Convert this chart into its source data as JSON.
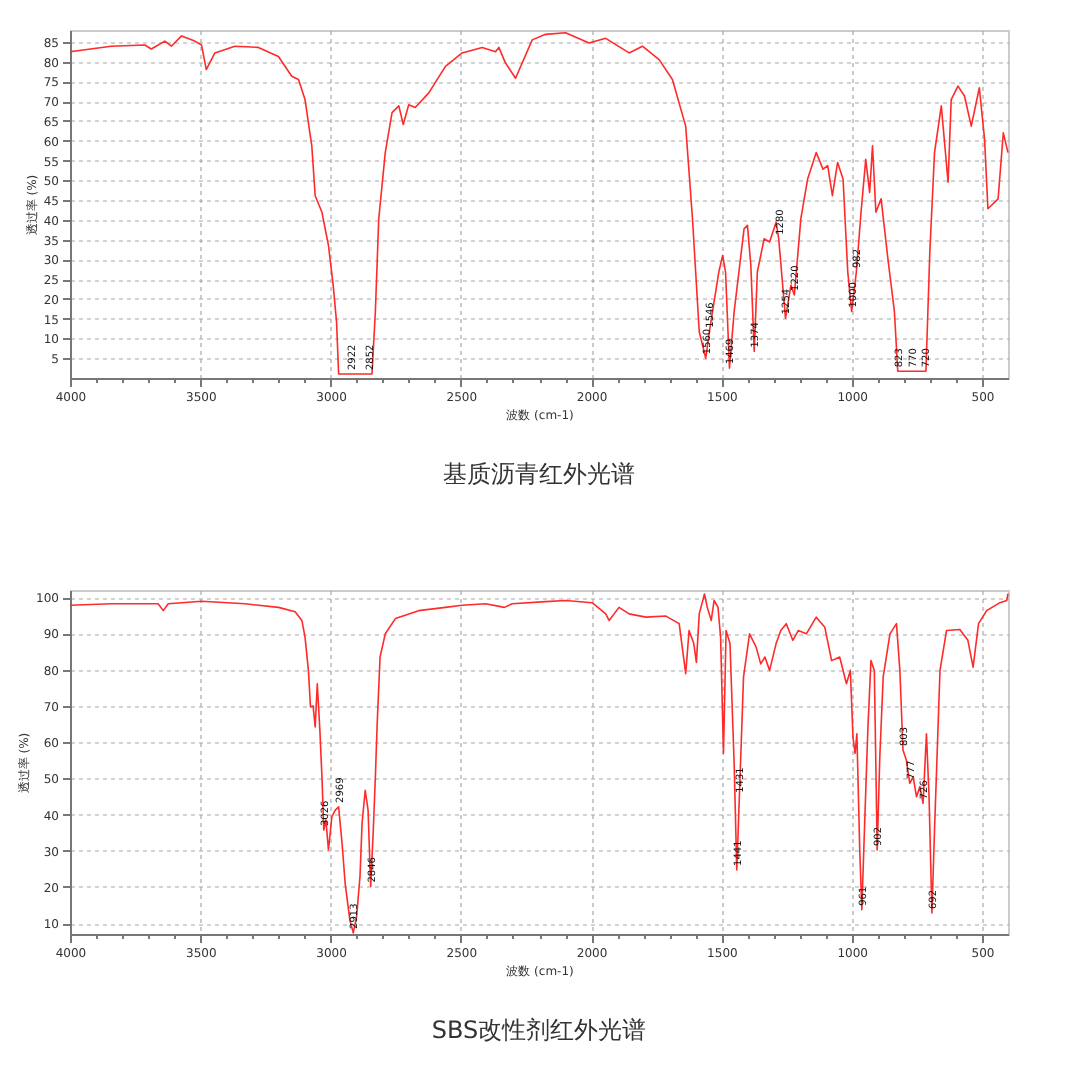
{
  "chart_data": [
    {
      "type": "line",
      "title": "基质沥青红外光谱",
      "xlabel": "波数 (cm-1)",
      "ylabel": "透过率 (%)",
      "grid": true,
      "xlim": [
        4000,
        400
      ],
      "ylim": [
        0,
        88
      ],
      "xticks": [
        4000,
        {
          "value": 3900,
          "label": null
        },
        {
          "value": 3800,
          "label": null
        },
        {
          "value": 3700,
          "label": null
        },
        {
          "value": 3600,
          "label": null
        },
        3500,
        {
          "value": 3400,
          "label": null
        },
        {
          "value": 3300,
          "label": null
        },
        {
          "value": 3200,
          "label": null
        },
        {
          "value": 3100,
          "label": null
        },
        3000,
        {
          "value": 2900,
          "label": null
        },
        {
          "value": 2800,
          "label": null
        },
        {
          "value": 2700,
          "label": null
        },
        {
          "value": 2600,
          "label": null
        },
        2500,
        {
          "value": 2400,
          "label": null
        },
        {
          "value": 2300,
          "label": null
        },
        {
          "value": 2200,
          "label": null
        },
        {
          "value": 2100,
          "label": null
        },
        2000,
        {
          "value": 1900,
          "label": null
        },
        {
          "value": 1800,
          "label": null
        },
        {
          "value": 1700,
          "label": null
        },
        {
          "value": 1600,
          "label": null
        },
        1500,
        {
          "value": 1400,
          "label": null
        },
        {
          "value": 1300,
          "label": null
        },
        {
          "value": 1200,
          "label": null
        },
        {
          "value": 1100,
          "label": null
        },
        1000,
        {
          "value": 900,
          "label": null
        },
        {
          "value": 800,
          "label": null
        },
        {
          "value": 700,
          "label": null
        },
        {
          "value": 600,
          "label": null
        },
        500
      ],
      "yticks": [
        5,
        10,
        15,
        20,
        25,
        30,
        35,
        40,
        45,
        50,
        55,
        60,
        65,
        70,
        75,
        80,
        85
      ],
      "x": [
        4000,
        3842,
        3713,
        3688,
        3636,
        3611,
        3572,
        3521,
        3495,
        3477,
        3444,
        3367,
        3277,
        3200,
        3149,
        3123,
        3098,
        3072,
        3059,
        3033,
        3008,
        2990,
        2977,
        2969,
        2900,
        2841,
        2828,
        2815,
        2790,
        2764,
        2738,
        2721,
        2700,
        2675,
        2623,
        2559,
        2495,
        2418,
        2367,
        2354,
        2329,
        2290,
        2226,
        2175,
        2098,
        2008,
        1944,
        1854,
        1803,
        1739,
        1688,
        1637,
        1611,
        1585,
        1560,
        1546,
        1510,
        1495,
        1484,
        1469,
        1451,
        1413,
        1400,
        1387,
        1374,
        1362,
        1336,
        1315,
        1290,
        1280,
        1254,
        1233,
        1220,
        1195,
        1169,
        1136,
        1110,
        1092,
        1074,
        1054,
        1033,
        1015,
        1000,
        982,
        964,
        946,
        931,
        920,
        907,
        887,
        861,
        836,
        823,
        715,
        700,
        682,
        656,
        630,
        618,
        592,
        567,
        541,
        510,
        490,
        477,
        438,
        418,
        400
      ],
      "series": [
        {
          "color": "#ff2a2a",
          "values": [
            82.5,
            83.9,
            84.2,
            83.2,
            85.2,
            83.9,
            86.5,
            85.2,
            84.2,
            78.0,
            82.2,
            83.9,
            83.6,
            81.3,
            76.3,
            75.5,
            70.4,
            58.7,
            46.1,
            41.9,
            33.5,
            23.5,
            14.2,
            1.0,
            1.0,
            1.0,
            16.8,
            40.3,
            57.0,
            67.1,
            68.8,
            64.1,
            69.1,
            68.4,
            72.1,
            78.8,
            82.2,
            83.6,
            82.5,
            83.6,
            79.7,
            75.8,
            85.5,
            86.9,
            87.3,
            84.7,
            85.9,
            82.2,
            83.9,
            80.5,
            75.5,
            63.7,
            40.3,
            11.7,
            5.0,
            11.7,
            26.8,
            31.0,
            26.8,
            2.5,
            16.8,
            37.7,
            38.6,
            28.5,
            6.7,
            26.8,
            35.2,
            34.4,
            39.4,
            35.2,
            15.1,
            23.5,
            21.0,
            40.3,
            50.3,
            57.0,
            52.8,
            53.7,
            46.1,
            54.5,
            50.3,
            26.8,
            16.8,
            26.8,
            41.9,
            55.3,
            46.9,
            58.7,
            41.9,
            45.3,
            30.2,
            16.8,
            1.7,
            1.7,
            31.9,
            57.0,
            68.8,
            49.5,
            70.4,
            73.8,
            71.3,
            63.7,
            73.4,
            60.4,
            42.8,
            45.3,
            62.0,
            57.0
          ]
        }
      ],
      "annotations": [
        {
          "text": "2922",
          "x": 2922,
          "y": 1
        },
        {
          "text": "2852",
          "x": 2852,
          "y": 1
        },
        {
          "text": "1560",
          "x": 1560,
          "y": 5
        },
        {
          "text": "1546",
          "x": 1546,
          "y": 11.7
        },
        {
          "text": "1469",
          "x": 1469,
          "y": 2.5
        },
        {
          "text": "1374",
          "x": 1374,
          "y": 6.7
        },
        {
          "text": "1280",
          "x": 1280,
          "y": 35.2
        },
        {
          "text": "1254",
          "x": 1254,
          "y": 15.1
        },
        {
          "text": "1220",
          "x": 1220,
          "y": 21.0
        },
        {
          "text": "1000",
          "x": 1000,
          "y": 16.8
        },
        {
          "text": "982",
          "x": 982,
          "y": 26.8
        },
        {
          "text": "823",
          "x": 823,
          "y": 1.7
        },
        {
          "text": "770",
          "x": 770,
          "y": 1.7
        },
        {
          "text": "720",
          "x": 720,
          "y": 1.7
        }
      ]
    },
    {
      "type": "line",
      "title": "SBS改性剂红外光谱",
      "xlabel": "波数 (cm-1)",
      "ylabel": "透过率 (%)",
      "grid": true,
      "xlim": [
        4000,
        400
      ],
      "ylim": [
        7,
        102
      ],
      "xticks": [
        4000,
        {
          "value": 3900,
          "label": null
        },
        {
          "value": 3800,
          "label": null
        },
        {
          "value": 3700,
          "label": null
        },
        {
          "value": 3600,
          "label": null
        },
        3500,
        {
          "value": 3400,
          "label": null
        },
        {
          "value": 3300,
          "label": null
        },
        {
          "value": 3200,
          "label": null
        },
        {
          "value": 3100,
          "label": null
        },
        3000,
        {
          "value": 2900,
          "label": null
        },
        {
          "value": 2800,
          "label": null
        },
        {
          "value": 2700,
          "label": null
        },
        {
          "value": 2600,
          "label": null
        },
        2500,
        {
          "value": 2400,
          "label": null
        },
        {
          "value": 2300,
          "label": null
        },
        {
          "value": 2200,
          "label": null
        },
        {
          "value": 2100,
          "label": null
        },
        2000,
        {
          "value": 1900,
          "label": null
        },
        {
          "value": 1800,
          "label": null
        },
        {
          "value": 1700,
          "label": null
        },
        {
          "value": 1600,
          "label": null
        },
        1500,
        {
          "value": 1400,
          "label": null
        },
        {
          "value": 1300,
          "label": null
        },
        {
          "value": 1200,
          "label": null
        },
        {
          "value": 1100,
          "label": null
        },
        1000,
        {
          "value": 900,
          "label": null
        },
        {
          "value": 800,
          "label": null
        },
        {
          "value": 700,
          "label": null
        },
        {
          "value": 600,
          "label": null
        },
        500
      ],
      "yticks": [
        10,
        20,
        30,
        40,
        50,
        60,
        70,
        80,
        90,
        100
      ],
      "x": [
        4000,
        3842,
        3662,
        3642,
        3623,
        3495,
        3328,
        3200,
        3136,
        3110,
        3098,
        3085,
        3077,
        3067,
        3059,
        3051,
        3041,
        3033,
        3026,
        3018,
        3008,
        2995,
        2982,
        2969,
        2956,
        2944,
        2926,
        2913,
        2900,
        2887,
        2879,
        2867,
        2856,
        2846,
        2836,
        2828,
        2821,
        2810,
        2790,
        2751,
        2662,
        2559,
        2495,
        2405,
        2333,
        2303,
        2175,
        2098,
        1996,
        1944,
        1931,
        1893,
        1854,
        1790,
        1713,
        1662,
        1637,
        1624,
        1606,
        1596,
        1585,
        1565,
        1554,
        1539,
        1528,
        1513,
        1503,
        1492,
        1482,
        1467,
        1451,
        1441,
        1431,
        1415,
        1392,
        1367,
        1349,
        1333,
        1315,
        1290,
        1272,
        1251,
        1226,
        1205,
        1174,
        1136,
        1103,
        1077,
        1046,
        1020,
        1005,
        995,
        987,
        980,
        969,
        961,
        951,
        938,
        926,
        913,
        902,
        892,
        879,
        853,
        828,
        815,
        803,
        790,
        777,
        764,
        751,
        738,
        726,
        713,
        703,
        692,
        682,
        661,
        636,
        585,
        554,
        534,
        513,
        482,
        431,
        405,
        400
      ],
      "series": [
        {
          "color": "#ff2a2a",
          "values": [
            97.8,
            98.2,
            98.2,
            96.3,
            98.2,
            98.9,
            98.2,
            97.2,
            96.0,
            93.6,
            89.0,
            79.8,
            69.7,
            70.0,
            64.2,
            76.1,
            63.3,
            50.4,
            35.7,
            38.5,
            30.2,
            39.4,
            41.2,
            42.1,
            32.1,
            21.0,
            10.9,
            7.3,
            11.8,
            22.9,
            37.6,
            46.7,
            41.2,
            20.1,
            35.7,
            50.4,
            65.1,
            83.5,
            89.9,
            94.1,
            96.3,
            97.2,
            97.8,
            98.2,
            97.2,
            98.2,
            98.8,
            99.1,
            98.5,
            95.4,
            93.6,
            97.2,
            95.4,
            94.5,
            94.8,
            92.7,
            78.9,
            90.8,
            87.2,
            82.0,
            95.4,
            100.9,
            97.2,
            93.6,
            99.1,
            97.2,
            89.0,
            56.9,
            90.8,
            87.2,
            54.1,
            24.7,
            44.9,
            78.0,
            89.9,
            86.3,
            81.6,
            83.5,
            79.8,
            87.2,
            90.8,
            92.7,
            88.1,
            90.8,
            89.9,
            94.5,
            91.7,
            82.5,
            83.5,
            76.1,
            79.8,
            61.4,
            56.9,
            62.3,
            30.2,
            13.7,
            35.7,
            63.3,
            82.5,
            79.8,
            30.2,
            55.9,
            78.0,
            89.9,
            92.7,
            79.8,
            57.8,
            55.0,
            48.6,
            50.4,
            44.9,
            47.7,
            43.1,
            62.3,
            44.9,
            12.8,
            35.7,
            79.8,
            90.8,
            91.1,
            88.1,
            80.7,
            92.7,
            96.3,
            98.5,
            99.1,
            101.0
          ]
        }
      ],
      "annotations": [
        {
          "text": "3026",
          "x": 3026,
          "y": 35.7
        },
        {
          "text": "2969",
          "x": 2969,
          "y": 42.1
        },
        {
          "text": "2913",
          "x": 2913,
          "y": 7.3
        },
        {
          "text": "2846",
          "x": 2846,
          "y": 20.1
        },
        {
          "text": "1441",
          "x": 1441,
          "y": 24.7
        },
        {
          "text": "1431",
          "x": 1431,
          "y": 44.9
        },
        {
          "text": "961",
          "x": 961,
          "y": 13.7
        },
        {
          "text": "902",
          "x": 902,
          "y": 30.2
        },
        {
          "text": "803",
          "x": 803,
          "y": 57.8
        },
        {
          "text": "777",
          "x": 777,
          "y": 48.6
        },
        {
          "text": "726",
          "x": 726,
          "y": 43.1
        },
        {
          "text": "692",
          "x": 692,
          "y": 12.8
        }
      ]
    }
  ]
}
